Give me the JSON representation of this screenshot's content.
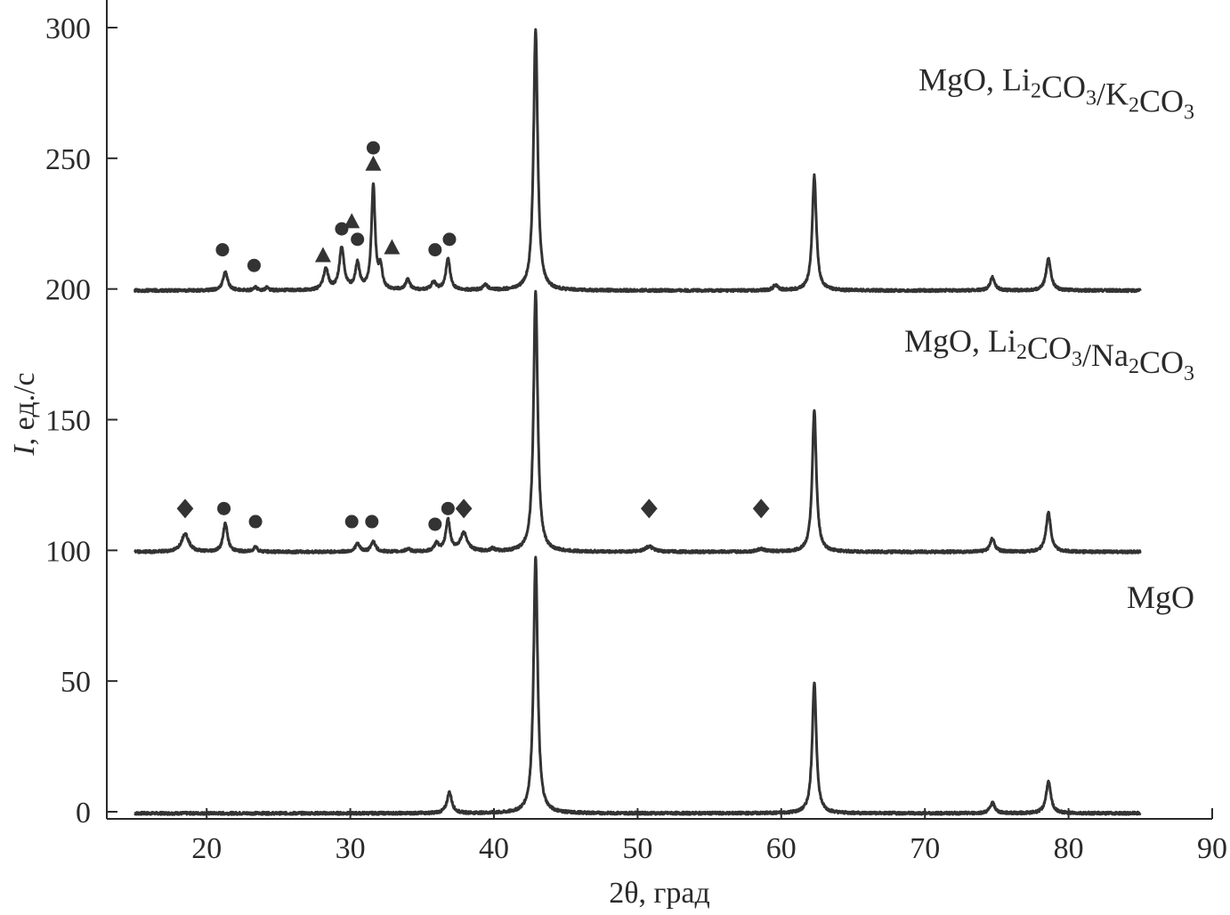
{
  "chart_data": {
    "type": "line",
    "xlabel": "2θ, град",
    "ylabel_italic": "I",
    "ylabel_rest": ", ед./с",
    "xlim": [
      13,
      90
    ],
    "ylim": [
      -2,
      300
    ],
    "xticks": [
      "20",
      "30",
      "40",
      "50",
      "60",
      "70",
      "80",
      "90"
    ],
    "yticks": [
      "0",
      "50",
      "100",
      "150",
      "200",
      "250",
      "300"
    ],
    "grid": false,
    "series": [
      {
        "label": {
          "prefix": "MgO",
          "compound1": "",
          "compound2": ""
        },
        "offset": 0,
        "peaks": [
          [
            36.9,
            8,
            0.2
          ],
          [
            42.9,
            98,
            0.17
          ],
          [
            62.3,
            50,
            0.17
          ],
          [
            74.7,
            4,
            0.2
          ],
          [
            78.6,
            12,
            0.2
          ]
        ],
        "markers": []
      },
      {
        "label": {
          "prefix": "MgO, ",
          "compound1": "Li2CO3",
          "compound2": "Na2CO3"
        },
        "offset": 100,
        "peaks": [
          [
            18.5,
            7,
            0.3
          ],
          [
            21.3,
            11,
            0.18
          ],
          [
            23.4,
            2,
            0.15
          ],
          [
            30.5,
            3,
            0.2
          ],
          [
            31.6,
            4,
            0.18
          ],
          [
            34.0,
            1,
            0.2
          ],
          [
            36.0,
            3,
            0.18
          ],
          [
            36.8,
            12,
            0.18
          ],
          [
            37.9,
            7,
            0.3
          ],
          [
            39.9,
            1,
            0.2
          ],
          [
            42.9,
            100,
            0.17
          ],
          [
            50.8,
            2,
            0.35
          ],
          [
            58.6,
            1,
            0.35
          ],
          [
            62.3,
            54,
            0.17
          ],
          [
            74.7,
            5,
            0.2
          ],
          [
            78.6,
            15,
            0.2
          ]
        ],
        "markers": [
          {
            "shape": "diamond",
            "x": 18.5,
            "y": 116
          },
          {
            "shape": "circle",
            "x": 21.2,
            "y": 116
          },
          {
            "shape": "circle",
            "x": 23.4,
            "y": 111
          },
          {
            "shape": "circle",
            "x": 30.1,
            "y": 111
          },
          {
            "shape": "circle",
            "x": 31.5,
            "y": 111
          },
          {
            "shape": "circle",
            "x": 35.9,
            "y": 110
          },
          {
            "shape": "circle",
            "x": 36.8,
            "y": 116
          },
          {
            "shape": "diamond",
            "x": 37.9,
            "y": 116
          },
          {
            "shape": "diamond",
            "x": 50.8,
            "y": 116
          },
          {
            "shape": "diamond",
            "x": 58.6,
            "y": 116
          }
        ]
      },
      {
        "label": {
          "prefix": "MgO, ",
          "compound1": "Li2CO3",
          "compound2": "K2CO3"
        },
        "offset": 200,
        "peaks": [
          [
            21.3,
            7,
            0.2
          ],
          [
            23.4,
            1,
            0.15
          ],
          [
            24.2,
            1,
            0.15
          ],
          [
            28.3,
            8,
            0.2
          ],
          [
            29.4,
            16,
            0.2
          ],
          [
            30.5,
            10,
            0.18
          ],
          [
            31.6,
            40,
            0.15
          ],
          [
            32.1,
            8,
            0.15
          ],
          [
            34.0,
            4,
            0.18
          ],
          [
            35.8,
            3,
            0.2
          ],
          [
            36.8,
            12,
            0.18
          ],
          [
            39.4,
            2,
            0.2
          ],
          [
            42.9,
            100,
            0.17
          ],
          [
            59.6,
            2,
            0.2
          ],
          [
            62.3,
            44,
            0.17
          ],
          [
            74.7,
            5,
            0.2
          ],
          [
            78.6,
            12,
            0.2
          ]
        ],
        "markers": [
          {
            "shape": "circle",
            "x": 21.1,
            "y": 215
          },
          {
            "shape": "circle",
            "x": 23.3,
            "y": 209
          },
          {
            "shape": "triangle",
            "x": 28.1,
            "y": 213
          },
          {
            "shape": "circle",
            "x": 29.4,
            "y": 223
          },
          {
            "shape": "triangle",
            "x": 30.1,
            "y": 226
          },
          {
            "shape": "circle",
            "x": 30.5,
            "y": 219
          },
          {
            "shape": "circle",
            "x": 31.6,
            "y": 254
          },
          {
            "shape": "triangle",
            "x": 31.6,
            "y": 248
          },
          {
            "shape": "triangle",
            "x": 32.9,
            "y": 216
          },
          {
            "shape": "circle",
            "x": 35.9,
            "y": 215
          },
          {
            "shape": "circle",
            "x": 36.9,
            "y": 219
          }
        ]
      }
    ]
  }
}
